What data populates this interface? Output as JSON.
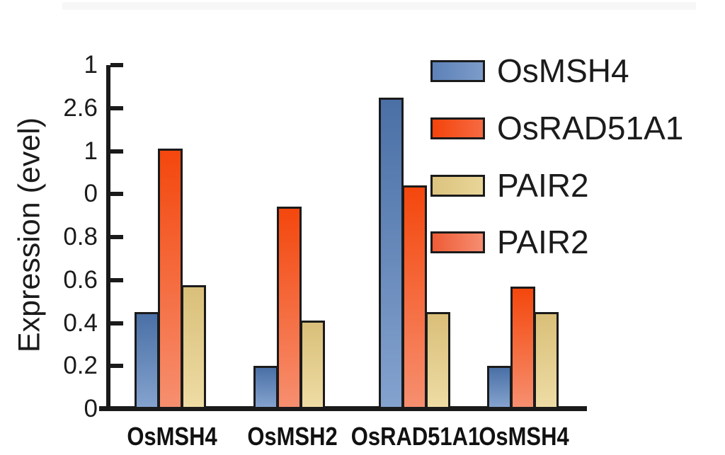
{
  "chart_data": {
    "type": "bar",
    "title": "",
    "xlabel": "",
    "ylabel": "Expression (evel)",
    "categories": [
      "OsMSH4",
      "OsMSH2",
      "OsRAD51A1",
      "OsMSH4"
    ],
    "series": [
      {
        "name": "OsMSH4",
        "values": [
          0.45,
          0.2,
          1.45,
          0.2
        ],
        "color_top": "#4a70a6",
        "color_bottom": "#84a2ce"
      },
      {
        "name": "OsRAD51A1",
        "values": [
          1.21,
          0.94,
          1.04,
          0.57
        ],
        "color_top": "#f4470d",
        "color_bottom": "#f68f6f"
      },
      {
        "name": "PAIR2",
        "values": [
          0.575,
          0.41,
          0.45,
          0.45
        ],
        "color_top": "#d9bf79",
        "color_bottom": "#eedca4"
      }
    ],
    "y_tick_labels_top_to_bottom": [
      "1",
      "2.6",
      "1",
      "0",
      "0.8",
      "0.6",
      "0.4",
      "0.2",
      "0"
    ],
    "grid": false,
    "legend_position": "upper-right",
    "legend": [
      {
        "label": "OsMSH4",
        "color_left": "#5d81b8",
        "color_right": "#7c9cc9"
      },
      {
        "label": "OsRAD51A1",
        "color_left": "#f4440b",
        "color_right": "#f66a42"
      },
      {
        "label": "PAIR2",
        "color_left": "#dcc37f",
        "color_right": "#e8d597"
      },
      {
        "label": "PAIR2",
        "color_left": "#ee5c36",
        "color_right": "#f68d71"
      }
    ],
    "axis_color": "#1a1a1a"
  }
}
